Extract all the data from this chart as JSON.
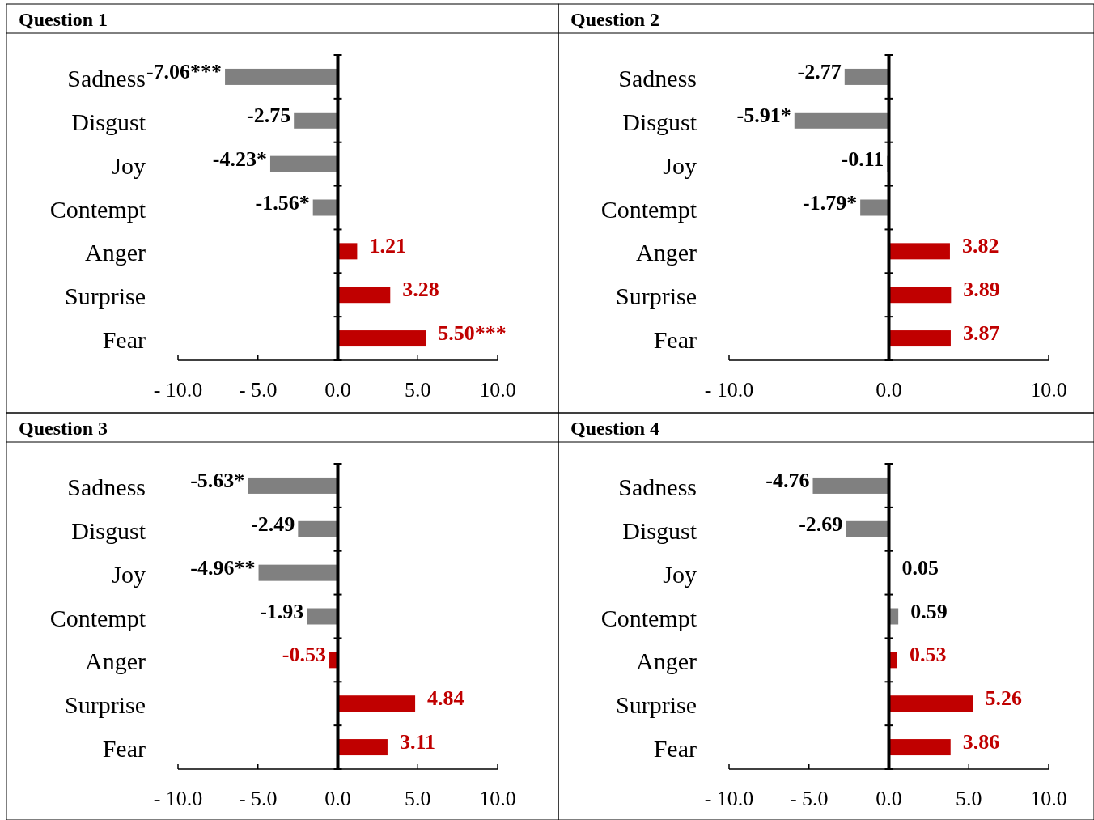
{
  "chart_data": [
    {
      "type": "bar",
      "orientation": "horizontal",
      "title": "Question 1",
      "categories": [
        "Sadness",
        "Disgust",
        "Joy",
        "Contempt",
        "Anger",
        "Surprise",
        "Fear"
      ],
      "values": [
        -7.06,
        -2.75,
        -4.23,
        -1.56,
        1.21,
        3.28,
        5.5
      ],
      "colors": [
        "#808080",
        "#808080",
        "#808080",
        "#808080",
        "#c00000",
        "#c00000",
        "#c00000"
      ],
      "value_labels": [
        "-7.06***",
        "-2.75",
        "-4.23*",
        "-1.56*",
        "1.21",
        "3.28",
        "5.50***"
      ],
      "xlim": [
        -10,
        10
      ],
      "xticks": [
        {
          "value": -10,
          "label": "- 10.0"
        },
        {
          "value": -5,
          "label": "- 5.0"
        },
        {
          "value": 0,
          "label": "0.0"
        },
        {
          "value": 5,
          "label": "5.0"
        },
        {
          "value": 10,
          "label": "10.0"
        }
      ]
    },
    {
      "type": "bar",
      "orientation": "horizontal",
      "title": "Question 2",
      "categories": [
        "Sadness",
        "Disgust",
        "Joy",
        "Contempt",
        "Anger",
        "Surprise",
        "Fear"
      ],
      "values": [
        -2.77,
        -5.91,
        -0.11,
        -1.79,
        3.82,
        3.89,
        3.87
      ],
      "colors": [
        "#808080",
        "#808080",
        "#808080",
        "#808080",
        "#c00000",
        "#c00000",
        "#c00000"
      ],
      "value_labels": [
        "-2.77",
        "-5.91*",
        "-0.11",
        "-1.79*",
        "3.82",
        "3.89",
        "3.87"
      ],
      "xlim": [
        -10,
        10
      ],
      "xticks": [
        {
          "value": -10,
          "label": "- 10.0"
        },
        {
          "value": 0,
          "label": "0.0"
        },
        {
          "value": 10,
          "label": "10.0"
        }
      ]
    },
    {
      "type": "bar",
      "orientation": "horizontal",
      "title": "Question 3",
      "categories": [
        "Sadness",
        "Disgust",
        "Joy",
        "Contempt",
        "Anger",
        "Surprise",
        "Fear"
      ],
      "values": [
        -5.63,
        -2.49,
        -4.96,
        -1.93,
        -0.53,
        4.84,
        3.11
      ],
      "colors": [
        "#808080",
        "#808080",
        "#808080",
        "#808080",
        "#c00000",
        "#c00000",
        "#c00000"
      ],
      "value_labels": [
        "-5.63*",
        "-2.49",
        "-4.96**",
        "-1.93",
        "-0.53",
        "4.84",
        "3.11"
      ],
      "xlim": [
        -10,
        10
      ],
      "xticks": [
        {
          "value": -10,
          "label": "- 10.0"
        },
        {
          "value": -5,
          "label": "- 5.0"
        },
        {
          "value": 0,
          "label": "0.0"
        },
        {
          "value": 5,
          "label": "5.0"
        },
        {
          "value": 10,
          "label": "10.0"
        }
      ]
    },
    {
      "type": "bar",
      "orientation": "horizontal",
      "title": "Question 4",
      "categories": [
        "Sadness",
        "Disgust",
        "Joy",
        "Contempt",
        "Anger",
        "Surprise",
        "Fear"
      ],
      "values": [
        -4.76,
        -2.69,
        0.05,
        0.59,
        0.53,
        5.26,
        3.86
      ],
      "colors": [
        "#808080",
        "#808080",
        "#808080",
        "#808080",
        "#c00000",
        "#c00000",
        "#c00000"
      ],
      "value_labels": [
        "-4.76",
        "-2.69",
        "0.05",
        "0.59",
        "0.53",
        "5.26",
        "3.86"
      ],
      "xlim": [
        -10,
        10
      ],
      "xticks": [
        {
          "value": -10,
          "label": "- 10.0"
        },
        {
          "value": -5,
          "label": "- 5.0"
        },
        {
          "value": 0,
          "label": "0.0"
        },
        {
          "value": 5,
          "label": "5.0"
        },
        {
          "value": 10,
          "label": "10.0"
        }
      ]
    }
  ]
}
